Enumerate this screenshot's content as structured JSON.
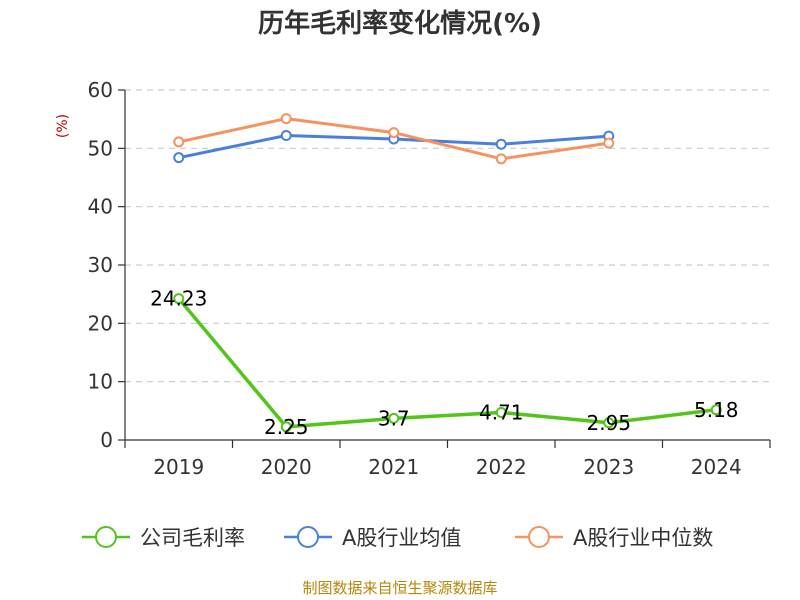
{
  "chart_data": {
    "type": "line",
    "title": "历年毛利率变化情况(%)",
    "ylabel": "(%)",
    "categories": [
      "2019",
      "2020",
      "2021",
      "2022",
      "2023",
      "2024"
    ],
    "ylim": [
      0,
      60
    ],
    "yticks": [
      0,
      10,
      20,
      30,
      40,
      50,
      60
    ],
    "grid": true,
    "legend_position": "bottom",
    "series": [
      {
        "name": "公司毛利率",
        "color": "#52c41a",
        "values": [
          24.23,
          2.25,
          3.7,
          4.71,
          2.95,
          5.18
        ],
        "labels": [
          "24.23",
          "2.25",
          "3.7",
          "4.71",
          "2.95",
          "5.18"
        ]
      },
      {
        "name": "A股行业均值",
        "color": "#4a7fdb",
        "values": [
          48.4,
          52.2,
          51.6,
          50.7,
          52.1,
          null
        ]
      },
      {
        "name": "A股行业中位数",
        "color": "#f5925e",
        "values": [
          51.1,
          55.1,
          52.7,
          48.2,
          50.9,
          null
        ]
      }
    ],
    "source": "制图数据来自恒生聚源数据库"
  }
}
